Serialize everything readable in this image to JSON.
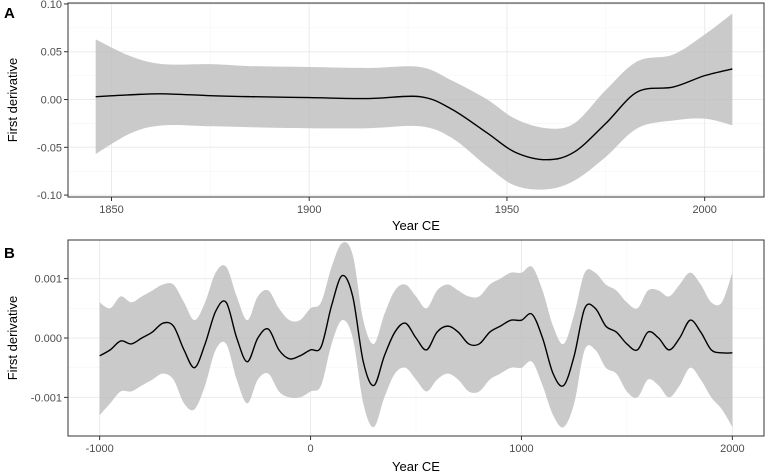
{
  "chart_data": [
    {
      "type": "line",
      "panel_label": "A",
      "xlabel": "Year CE",
      "ylabel": "First derivative",
      "xlim": [
        1839,
        2015
      ],
      "ylim": [
        -0.102,
        0.101
      ],
      "x_ticks": [
        1850,
        1900,
        1950,
        2000
      ],
      "x_tick_labels": [
        "1850",
        "1900",
        "1950",
        "2000"
      ],
      "y_ticks": [
        -0.1,
        -0.05,
        0.0,
        0.05,
        0.1
      ],
      "y_tick_labels": [
        "-0.10",
        "-0.05",
        "0.00",
        "0.05",
        "0.10"
      ],
      "grid": true,
      "series": [
        {
          "name": "First derivative",
          "x": [
            1846,
            1855,
            1863,
            1875,
            1885,
            1900,
            1915,
            1928,
            1936,
            1945,
            1952,
            1960,
            1967,
            1975,
            1983,
            1992,
            2000,
            2007
          ],
          "y": [
            0.003,
            0.005,
            0.006,
            0.004,
            0.003,
            0.002,
            0.001,
            0.003,
            -0.01,
            -0.035,
            -0.055,
            -0.063,
            -0.055,
            -0.025,
            0.008,
            0.013,
            0.025,
            0.032
          ],
          "lower": [
            -0.057,
            -0.035,
            -0.027,
            -0.028,
            -0.029,
            -0.03,
            -0.03,
            -0.028,
            -0.04,
            -0.07,
            -0.09,
            -0.094,
            -0.085,
            -0.06,
            -0.03,
            -0.022,
            -0.02,
            -0.027
          ],
          "upper": [
            0.063,
            0.045,
            0.037,
            0.037,
            0.035,
            0.034,
            0.033,
            0.034,
            0.02,
            0.0,
            -0.02,
            -0.03,
            -0.025,
            0.01,
            0.04,
            0.047,
            0.068,
            0.09
          ]
        }
      ]
    },
    {
      "type": "line",
      "panel_label": "B",
      "xlabel": "Year CE",
      "ylabel": "First derivative",
      "xlim": [
        -1150,
        2150
      ],
      "ylim": [
        -0.00165,
        0.00165
      ],
      "x_ticks": [
        -1000,
        0,
        1000,
        2000
      ],
      "x_tick_labels": [
        "-1000",
        "0",
        "1000",
        "2000"
      ],
      "y_ticks": [
        -0.001,
        0.0,
        0.001
      ],
      "y_tick_labels": [
        "-0.001",
        "0.000",
        "0.001"
      ],
      "grid": true,
      "series": [
        {
          "name": "First derivative",
          "x": [
            -1000,
            -950,
            -900,
            -850,
            -800,
            -750,
            -700,
            -650,
            -600,
            -550,
            -500,
            -450,
            -400,
            -350,
            -300,
            -250,
            -200,
            -150,
            -100,
            -50,
            0,
            50,
            100,
            150,
            200,
            250,
            300,
            350,
            400,
            450,
            500,
            550,
            600,
            650,
            700,
            750,
            800,
            850,
            900,
            950,
            1000,
            1050,
            1100,
            1150,
            1200,
            1250,
            1300,
            1350,
            1400,
            1450,
            1500,
            1550,
            1600,
            1650,
            1700,
            1750,
            1800,
            1850,
            1900,
            1950,
            2000
          ],
          "y": [
            -0.0003,
            -0.0002,
            -5e-05,
            -0.0001,
            0.0,
            0.0001,
            0.00025,
            0.0002,
            -0.0002,
            -0.0005,
            -0.0001,
            0.00045,
            0.0006,
            0.0,
            -0.0004,
            0.0,
            0.00015,
            -0.0002,
            -0.00035,
            -0.0003,
            -0.0002,
            -0.00015,
            0.00055,
            0.00105,
            0.0007,
            -0.0004,
            -0.0008,
            -0.0003,
            0.0001,
            0.00025,
            0.0,
            -0.0002,
            0.0001,
            0.0002,
            0.0001,
            -0.0001,
            -0.0001,
            0.0001,
            0.0002,
            0.0003,
            0.0003,
            0.0004,
            0.0,
            -0.0006,
            -0.0008,
            -0.0003,
            0.0005,
            0.0005,
            0.0002,
            0.0001,
            -0.0001,
            -0.0002,
            0.0001,
            0.0,
            -0.0002,
            0.0,
            0.0003,
            0.0001,
            -0.0002,
            -0.00025,
            -0.00025
          ],
          "lower": [
            -0.0013,
            -0.0011,
            -0.0009,
            -0.0009,
            -0.0008,
            -0.0007,
            -0.0006,
            -0.0007,
            -0.0011,
            -0.0012,
            -0.0008,
            -0.0002,
            -0.0001,
            -0.0007,
            -0.0011,
            -0.0007,
            -0.0006,
            -0.0009,
            -0.001,
            -0.001,
            -0.0009,
            -0.0008,
            -0.0001,
            0.0003,
            0.0,
            -0.0011,
            -0.0015,
            -0.001,
            -0.0006,
            -0.0005,
            -0.0007,
            -0.0009,
            -0.0007,
            -0.0006,
            -0.0007,
            -0.0009,
            -0.0009,
            -0.0007,
            -0.0006,
            -0.0005,
            -0.0005,
            -0.0004,
            -0.0008,
            -0.0013,
            -0.0015,
            -0.0011,
            -0.0002,
            -0.0002,
            -0.0005,
            -0.0006,
            -0.0009,
            -0.001,
            -0.0007,
            -0.0008,
            -0.001,
            -0.0008,
            -0.0005,
            -0.0007,
            -0.001,
            -0.0012,
            -0.0015
          ],
          "upper": [
            0.0006,
            0.0005,
            0.0007,
            0.0006,
            0.0007,
            0.0008,
            0.0009,
            0.0009,
            0.0006,
            0.0003,
            0.0006,
            0.0011,
            0.0012,
            0.0007,
            0.0003,
            0.0007,
            0.0008,
            0.0005,
            0.0003,
            0.0003,
            0.0005,
            0.0006,
            0.0012,
            0.0016,
            0.0014,
            0.0003,
            -0.0001,
            0.0004,
            0.0008,
            0.0009,
            0.0007,
            0.0005,
            0.0008,
            0.0009,
            0.0008,
            0.0007,
            0.0007,
            0.0009,
            0.001,
            0.0011,
            0.0011,
            0.0012,
            0.0008,
            0.0002,
            -0.0001,
            0.0004,
            0.0011,
            0.0011,
            0.0009,
            0.0008,
            0.0006,
            0.0005,
            0.0008,
            0.0008,
            0.0007,
            0.0009,
            0.0011,
            0.0009,
            0.0006,
            0.0006,
            0.0011
          ]
        }
      ]
    }
  ]
}
